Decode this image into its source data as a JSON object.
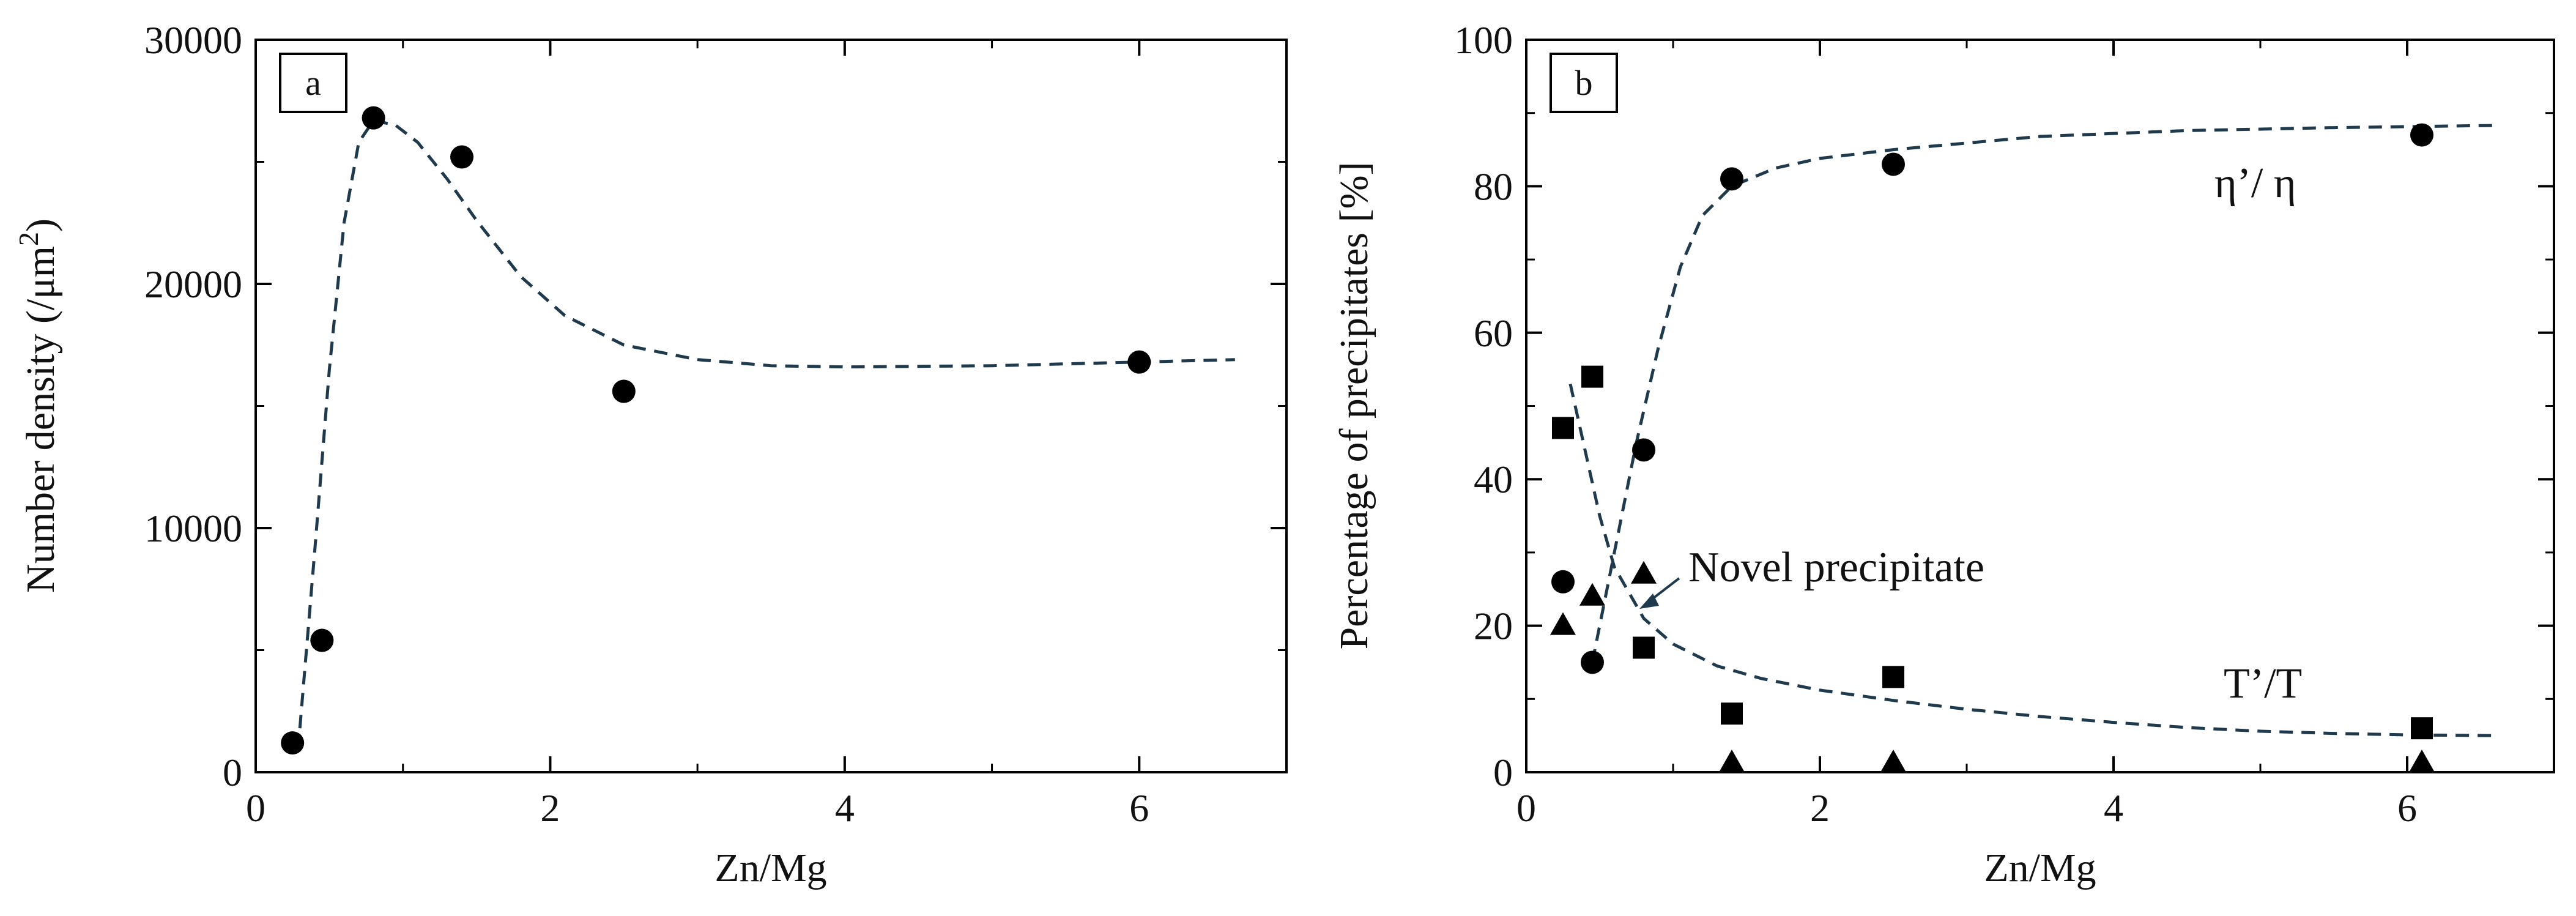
{
  "chart_data": [
    {
      "panel": "a",
      "type": "scatter",
      "xlabel": "Zn/Mg",
      "ylabel": "Number density (/μm",
      "ylabel_sup": "2",
      "ylabel_close": ")",
      "xlim": [
        0,
        7
      ],
      "ylim": [
        0,
        30000
      ],
      "xticks": [
        0,
        2,
        4,
        6
      ],
      "yticks": [
        0,
        10000,
        20000,
        30000
      ],
      "series": [
        {
          "marker": "circle",
          "points": [
            {
              "x": 0.25,
              "y": 1200
            },
            {
              "x": 0.45,
              "y": 5400
            },
            {
              "x": 0.8,
              "y": 26800
            },
            {
              "x": 1.4,
              "y": 25200
            },
            {
              "x": 2.5,
              "y": 15600
            },
            {
              "x": 6.0,
              "y": 16800
            }
          ]
        }
      ],
      "fit_curve": [
        {
          "x": 0.3,
          "y": 1800
        },
        {
          "x": 0.4,
          "y": 9000
        },
        {
          "x": 0.5,
          "y": 16500
        },
        {
          "x": 0.6,
          "y": 22500
        },
        {
          "x": 0.7,
          "y": 25800
        },
        {
          "x": 0.8,
          "y": 26700
        },
        {
          "x": 0.95,
          "y": 26500
        },
        {
          "x": 1.1,
          "y": 25800
        },
        {
          "x": 1.3,
          "y": 24300
        },
        {
          "x": 1.5,
          "y": 22600
        },
        {
          "x": 1.8,
          "y": 20300
        },
        {
          "x": 2.1,
          "y": 18700
        },
        {
          "x": 2.5,
          "y": 17500
        },
        {
          "x": 3.0,
          "y": 16900
        },
        {
          "x": 3.5,
          "y": 16650
        },
        {
          "x": 4.0,
          "y": 16600
        },
        {
          "x": 5.0,
          "y": 16650
        },
        {
          "x": 6.0,
          "y": 16800
        },
        {
          "x": 6.65,
          "y": 16900
        }
      ]
    },
    {
      "panel": "b",
      "type": "scatter",
      "xlabel": "Zn/Mg",
      "ylabel": "Percentage of precipitates [%]",
      "xlim": [
        0,
        7
      ],
      "ylim": [
        0,
        100
      ],
      "xticks": [
        0,
        2,
        4,
        6
      ],
      "yticks": [
        0,
        20,
        40,
        60,
        80,
        100
      ],
      "series": [
        {
          "name": "η’/ η",
          "marker": "circle",
          "points": [
            {
              "x": 0.25,
              "y": 26
            },
            {
              "x": 0.45,
              "y": 15
            },
            {
              "x": 0.8,
              "y": 44
            },
            {
              "x": 1.4,
              "y": 81
            },
            {
              "x": 2.5,
              "y": 83
            },
            {
              "x": 6.1,
              "y": 87
            }
          ]
        },
        {
          "name": "T’/T",
          "marker": "square",
          "points": [
            {
              "x": 0.25,
              "y": 47
            },
            {
              "x": 0.45,
              "y": 54
            },
            {
              "x": 0.8,
              "y": 17
            },
            {
              "x": 1.4,
              "y": 8
            },
            {
              "x": 2.5,
              "y": 13
            },
            {
              "x": 6.1,
              "y": 6
            }
          ]
        },
        {
          "name": "Novel precipitate",
          "marker": "triangle",
          "points": [
            {
              "x": 0.25,
              "y": 20
            },
            {
              "x": 0.45,
              "y": 24
            },
            {
              "x": 0.8,
              "y": 27
            },
            {
              "x": 1.4,
              "y": 0
            },
            {
              "x": 2.5,
              "y": 0
            },
            {
              "x": 6.1,
              "y": 0
            }
          ]
        }
      ],
      "fit_curve_eta": [
        {
          "x": 0.45,
          "y": 15
        },
        {
          "x": 0.6,
          "y": 30
        },
        {
          "x": 0.75,
          "y": 45
        },
        {
          "x": 0.9,
          "y": 58
        },
        {
          "x": 1.05,
          "y": 69
        },
        {
          "x": 1.2,
          "y": 76
        },
        {
          "x": 1.4,
          "y": 80
        },
        {
          "x": 1.7,
          "y": 82.5
        },
        {
          "x": 2.0,
          "y": 83.8
        },
        {
          "x": 2.5,
          "y": 85
        },
        {
          "x": 3.5,
          "y": 86.8
        },
        {
          "x": 4.5,
          "y": 87.6
        },
        {
          "x": 5.5,
          "y": 88
        },
        {
          "x": 6.6,
          "y": 88.3
        }
      ],
      "fit_curve_t": [
        {
          "x": 0.3,
          "y": 53
        },
        {
          "x": 0.4,
          "y": 44
        },
        {
          "x": 0.5,
          "y": 35
        },
        {
          "x": 0.6,
          "y": 28
        },
        {
          "x": 0.8,
          "y": 21
        },
        {
          "x": 1.0,
          "y": 17.5
        },
        {
          "x": 1.3,
          "y": 14.5
        },
        {
          "x": 1.6,
          "y": 12.8
        },
        {
          "x": 2.0,
          "y": 11.2
        },
        {
          "x": 2.5,
          "y": 9.8
        },
        {
          "x": 3.0,
          "y": 8.6
        },
        {
          "x": 3.5,
          "y": 7.6
        },
        {
          "x": 4.0,
          "y": 6.8
        },
        {
          "x": 4.5,
          "y": 6.1
        },
        {
          "x": 5.0,
          "y": 5.6
        },
        {
          "x": 5.5,
          "y": 5.3
        },
        {
          "x": 6.0,
          "y": 5.1
        },
        {
          "x": 6.6,
          "y": 5.0
        }
      ],
      "annotations": {
        "eta_label": "η’/ η",
        "t_label": "T’/T",
        "novel_label": "Novel precipitate"
      }
    }
  ]
}
